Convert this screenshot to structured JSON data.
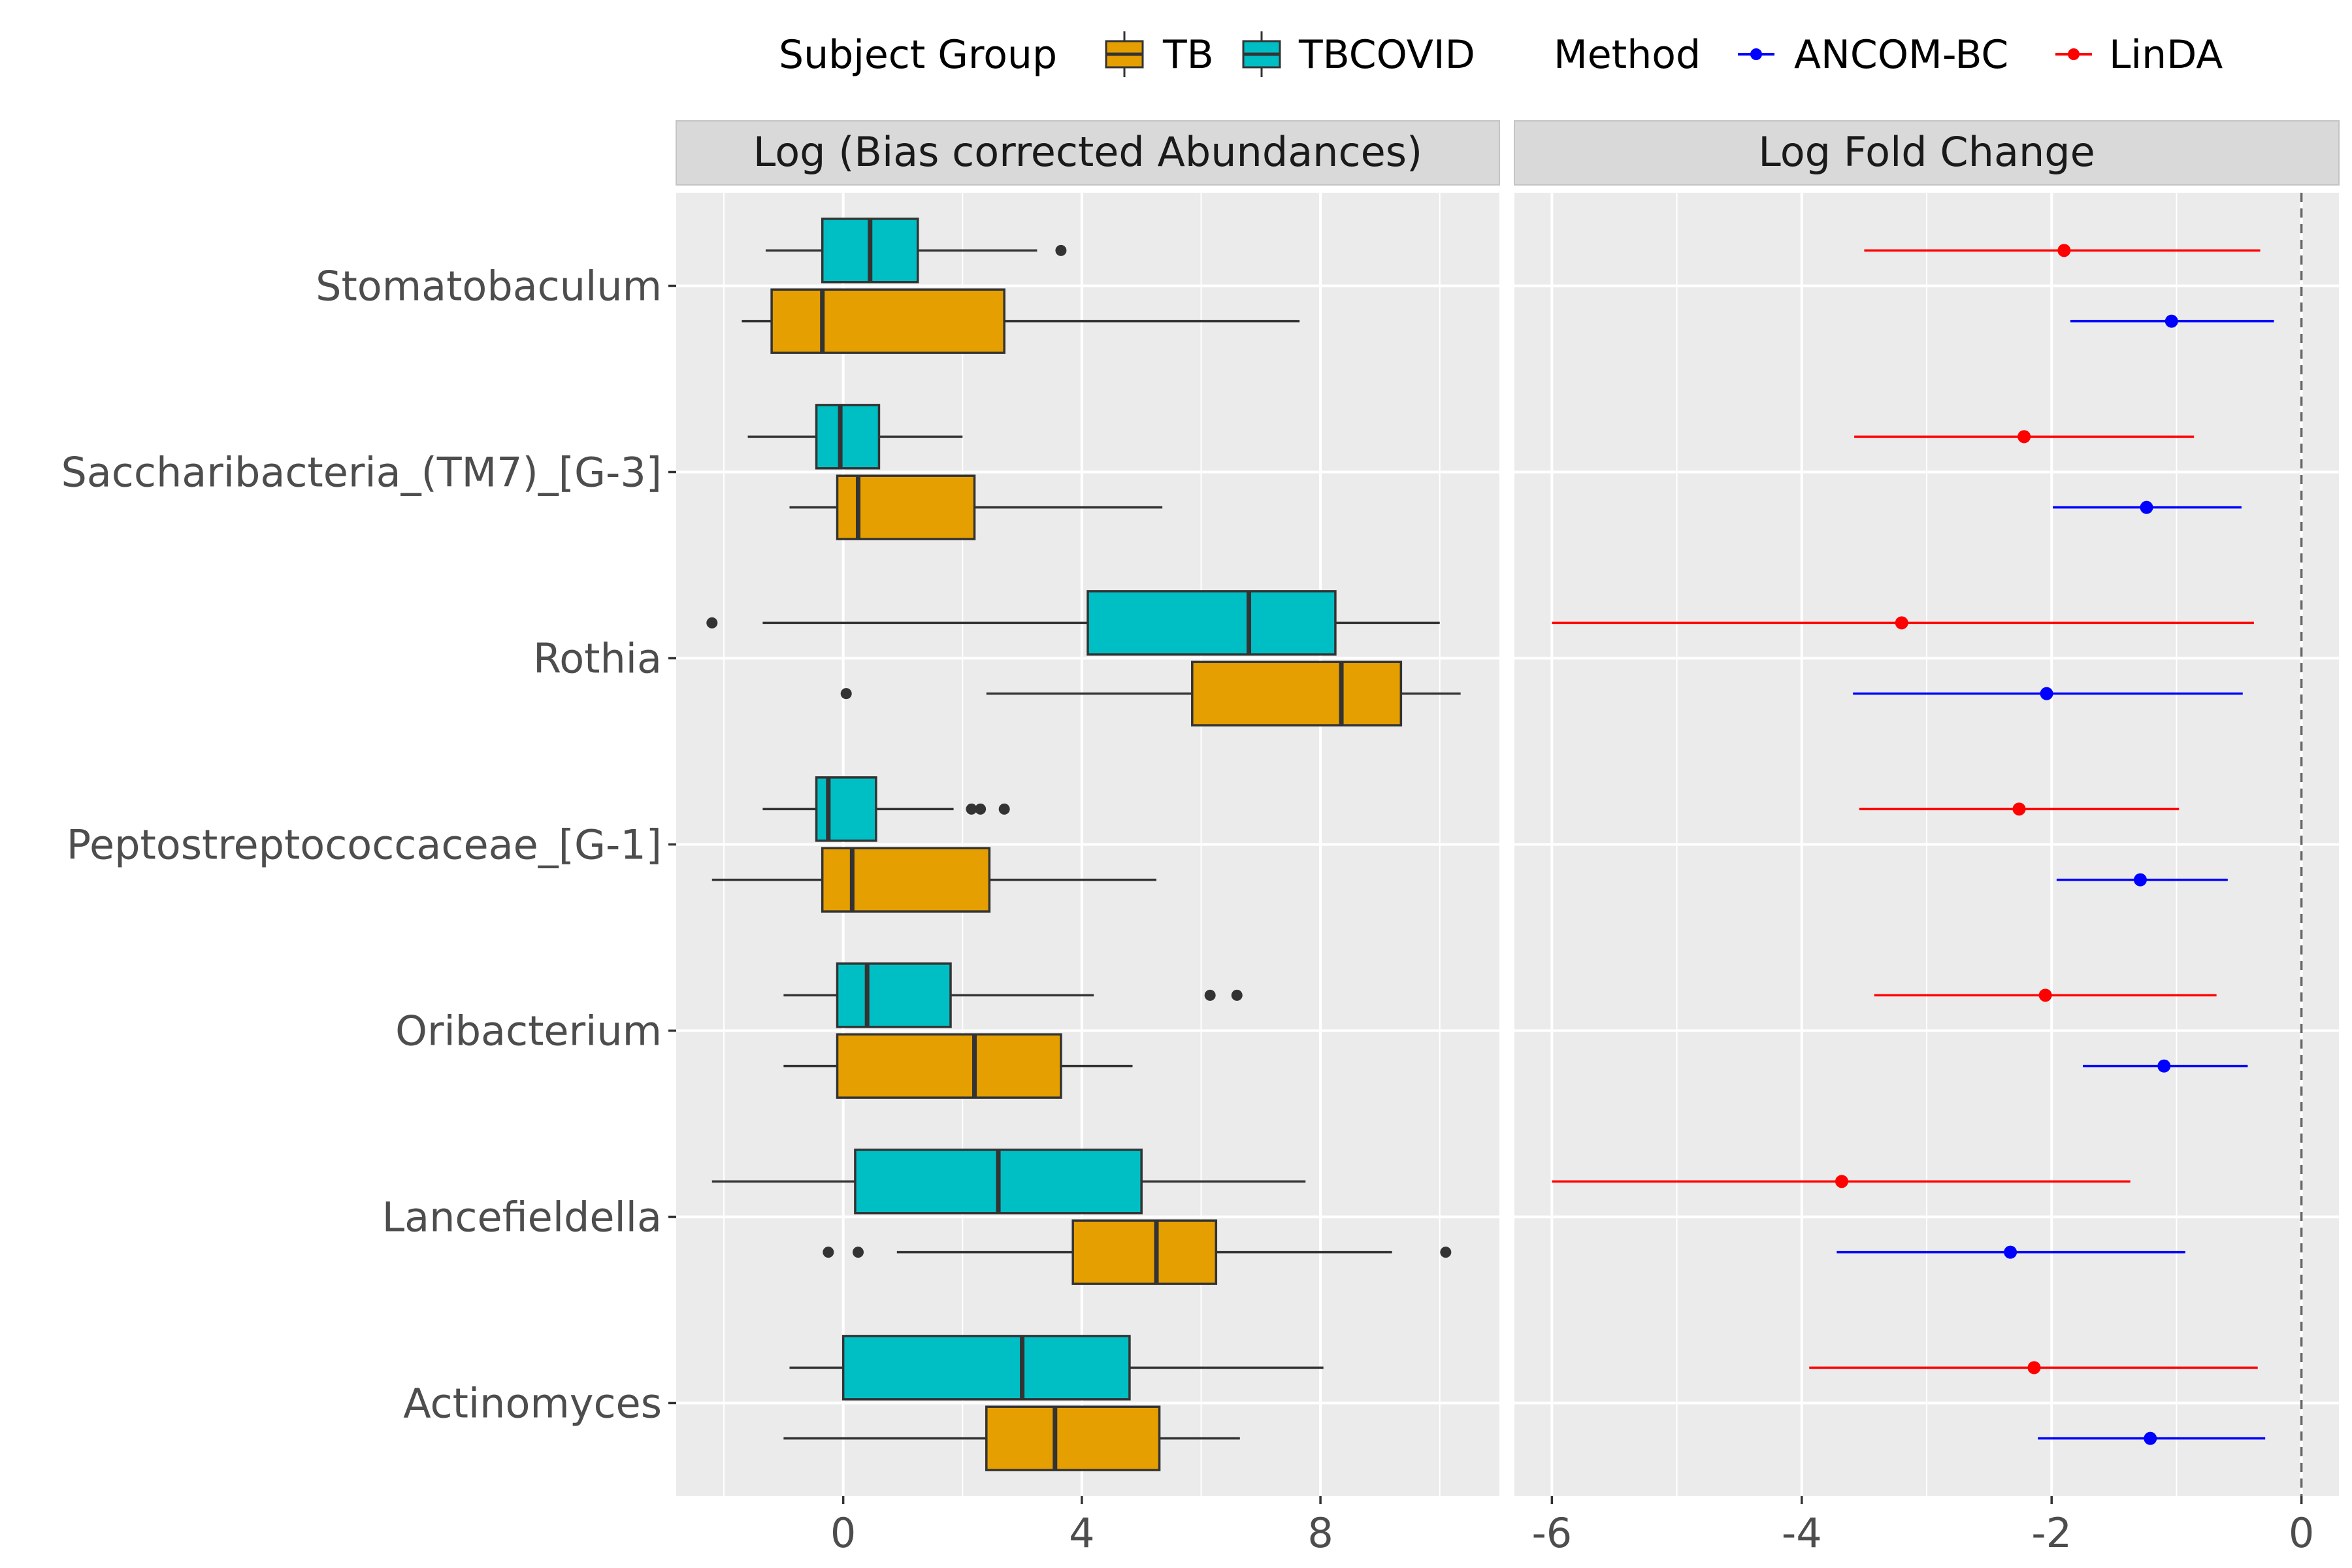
{
  "legend": {
    "group_title": "Subject Group",
    "group_items": [
      {
        "label": "TB",
        "color": "#E69F00"
      },
      {
        "label": "TBCOVID",
        "color": "#00BFC4"
      }
    ],
    "method_title": "Method",
    "method_items": [
      {
        "label": "ANCOM-BC",
        "color": "#0000FF"
      },
      {
        "label": "LinDA",
        "color": "#FF0000"
      }
    ]
  },
  "chart_data": [
    {
      "type": "boxplot",
      "panel_title": "Log (Bias corrected Abundances)",
      "categories": [
        "Stomatobaculum",
        "Saccharibacteria_(TM7)_[G-3]",
        "Rothia",
        "Peptostreptococcaceae_[G-1]",
        "Oribacterium",
        "Lancefieldella",
        "Actinomyces"
      ],
      "x_ticks": [
        0,
        4,
        8
      ],
      "xlim": [
        -2.8,
        11.0
      ],
      "grid": true,
      "series": [
        {
          "name": "TBCOVID",
          "color": "#00BFC4",
          "boxes": [
            {
              "whisker_low": -1.3,
              "q1": -0.35,
              "median": 0.45,
              "q3": 1.25,
              "whisker_high": 3.25,
              "outliers": [
                3.65
              ]
            },
            {
              "whisker_low": -1.6,
              "q1": -0.45,
              "median": -0.05,
              "q3": 0.6,
              "whisker_high": 2.0,
              "outliers": []
            },
            {
              "whisker_low": -1.35,
              "q1": 4.1,
              "median": 6.8,
              "q3": 8.25,
              "whisker_high": 10.0,
              "outliers": [
                -2.2
              ]
            },
            {
              "whisker_low": -1.35,
              "q1": -0.45,
              "median": -0.25,
              "q3": 0.55,
              "whisker_high": 1.85,
              "outliers": [
                2.15,
                2.3,
                2.7
              ]
            },
            {
              "whisker_low": -1.0,
              "q1": -0.1,
              "median": 0.4,
              "q3": 1.8,
              "whisker_high": 4.2,
              "outliers": [
                6.15,
                6.6
              ]
            },
            {
              "whisker_low": -2.2,
              "q1": 0.2,
              "median": 2.6,
              "q3": 5.0,
              "whisker_high": 7.75,
              "outliers": []
            },
            {
              "whisker_low": -0.9,
              "q1": 0.0,
              "median": 3.0,
              "q3": 4.8,
              "whisker_high": 8.05,
              "outliers": []
            }
          ]
        },
        {
          "name": "TB",
          "color": "#E69F00",
          "boxes": [
            {
              "whisker_low": -1.7,
              "q1": -1.2,
              "median": -0.35,
              "q3": 2.7,
              "whisker_high": 7.65,
              "outliers": []
            },
            {
              "whisker_low": -0.9,
              "q1": -0.1,
              "median": 0.25,
              "q3": 2.2,
              "whisker_high": 5.35,
              "outliers": []
            },
            {
              "whisker_low": 2.4,
              "q1": 5.85,
              "median": 8.35,
              "q3": 9.35,
              "whisker_high": 10.35,
              "outliers": [
                0.05
              ]
            },
            {
              "whisker_low": -2.2,
              "q1": -0.35,
              "median": 0.15,
              "q3": 2.45,
              "whisker_high": 5.25,
              "outliers": []
            },
            {
              "whisker_low": -1.0,
              "q1": -0.1,
              "median": 2.2,
              "q3": 3.65,
              "whisker_high": 4.85,
              "outliers": []
            },
            {
              "whisker_low": 0.9,
              "q1": 3.85,
              "median": 5.25,
              "q3": 6.25,
              "whisker_high": 9.2,
              "outliers": [
                -0.25,
                0.25,
                10.1
              ]
            },
            {
              "whisker_low": -1.0,
              "q1": 2.4,
              "median": 3.55,
              "q3": 5.3,
              "whisker_high": 6.65,
              "outliers": []
            }
          ]
        }
      ]
    },
    {
      "type": "errorbar",
      "panel_title": "Log Fold Change",
      "categories": [
        "Stomatobaculum",
        "Saccharibacteria_(TM7)_[G-3]",
        "Rothia",
        "Peptostreptococcaceae_[G-1]",
        "Oribacterium",
        "Lancefieldella",
        "Actinomyces"
      ],
      "x_ticks": [
        -6,
        -4,
        -2,
        0
      ],
      "xlim": [
        -6.3,
        0.3
      ],
      "reference_line": 0,
      "grid": true,
      "series": [
        {
          "name": "LinDA",
          "color": "#FF0000",
          "points": [
            {
              "estimate": -1.9,
              "low": -3.5,
              "high": -0.33
            },
            {
              "estimate": -2.22,
              "low": -3.58,
              "high": -0.86
            },
            {
              "estimate": -3.2,
              "low": -6.0,
              "high": -0.38
            },
            {
              "estimate": -2.26,
              "low": -3.54,
              "high": -0.98
            },
            {
              "estimate": -2.05,
              "low": -3.42,
              "high": -0.68
            },
            {
              "estimate": -3.68,
              "low": -6.0,
              "high": -1.37
            },
            {
              "estimate": -2.14,
              "low": -3.94,
              "high": -0.35
            }
          ]
        },
        {
          "name": "ANCOM-BC",
          "color": "#0000FF",
          "points": [
            {
              "estimate": -1.04,
              "low": -1.85,
              "high": -0.22
            },
            {
              "estimate": -1.24,
              "low": -1.99,
              "high": -0.48
            },
            {
              "estimate": -2.04,
              "low": -3.59,
              "high": -0.47
            },
            {
              "estimate": -1.29,
              "low": -1.96,
              "high": -0.59
            },
            {
              "estimate": -1.1,
              "low": -1.75,
              "high": -0.43
            },
            {
              "estimate": -2.33,
              "low": -3.72,
              "high": -0.93
            },
            {
              "estimate": -1.21,
              "low": -2.11,
              "high": -0.29
            }
          ]
        }
      ]
    }
  ]
}
